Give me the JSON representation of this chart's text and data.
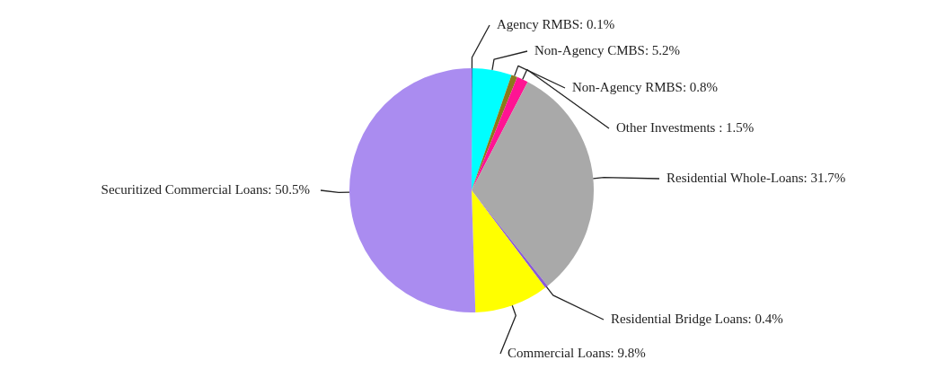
{
  "chart_data": {
    "type": "pie",
    "categories": [
      "Agency RMBS: 0.1%",
      "Non-Agency CMBS: 5.2%",
      "Non-Agency RMBS: 0.8%",
      "Other Investments : 1.5%",
      "Residential Whole-Loans: 31.7%",
      "Residential Bridge Loans: 0.4%",
      "Commercial Loans: 9.8%",
      "Securitized Commercial Loans: 50.5%"
    ],
    "values": [
      0.1,
      5.2,
      0.8,
      1.5,
      31.7,
      0.4,
      9.8,
      50.5
    ],
    "colors": [
      "#1f3a93",
      "#00ffff",
      "#8b7a1a",
      "#ff1493",
      "#a9a9a9",
      "#8a5cd6",
      "#ffff00",
      "#aa8cf0"
    ],
    "legend": false
  }
}
